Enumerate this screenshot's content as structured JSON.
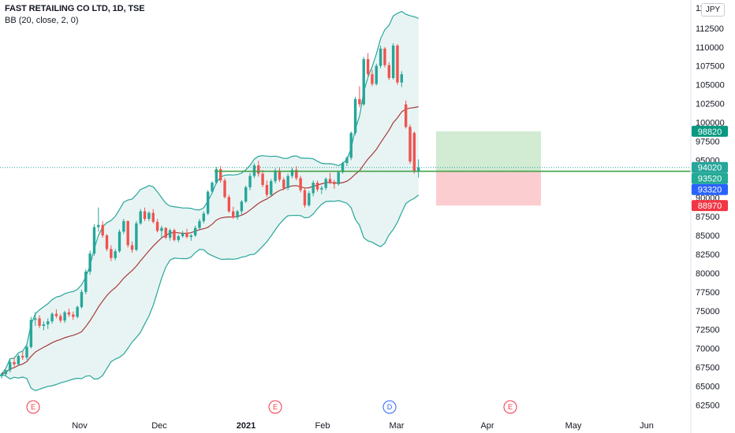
{
  "header": {
    "title": "FAST RETAILING CO LTD, 1D, TSE",
    "indicator": "BB (20, close, 2, 0)",
    "currency": "JPY"
  },
  "chart_data": {
    "type": "candlestick",
    "instrument": "FAST RETAILING CO LTD",
    "interval": "1D",
    "exchange": "TSE",
    "currency": "JPY",
    "ylim": [
      61500,
      115200
    ],
    "y_ticks": [
      62500,
      65000,
      67500,
      70000,
      72500,
      75000,
      77500,
      80000,
      82500,
      85000,
      87500,
      90000,
      92500,
      95000,
      97500,
      100000,
      102500,
      105000,
      107500,
      110000,
      112500
    ],
    "top_tick_partial": "11",
    "x_labels": [
      {
        "label": "Nov",
        "bold": false
      },
      {
        "label": "Dec",
        "bold": false
      },
      {
        "label": "2021",
        "bold": true
      },
      {
        "label": "Feb",
        "bold": false
      },
      {
        "label": "Mar",
        "bold": false
      },
      {
        "label": "Apr",
        "bold": false
      },
      {
        "label": "May",
        "bold": false
      },
      {
        "label": "Jun",
        "bold": false
      }
    ],
    "bars": [
      [
        66300,
        66800,
        66000,
        66600
      ],
      [
        66600,
        67200,
        66300,
        67100
      ],
      [
        67100,
        68500,
        66800,
        68200
      ],
      [
        68200,
        68800,
        67600,
        67900
      ],
      [
        67900,
        69200,
        67700,
        69000
      ],
      [
        69000,
        69600,
        68500,
        68800
      ],
      [
        68800,
        70500,
        68500,
        70200
      ],
      [
        70200,
        74200,
        70000,
        73800
      ],
      [
        73800,
        74800,
        73000,
        74000
      ],
      [
        74000,
        74400,
        72700,
        73000
      ],
      [
        73000,
        73600,
        72400,
        73200
      ],
      [
        73200,
        74000,
        72600,
        73600
      ],
      [
        73600,
        74800,
        73300,
        74600
      ],
      [
        74600,
        75200,
        74000,
        74300
      ],
      [
        74300,
        74600,
        73400,
        73700
      ],
      [
        73700,
        75000,
        73400,
        74800
      ],
      [
        74800,
        75300,
        74200,
        74500
      ],
      [
        74500,
        74900,
        73800,
        74200
      ],
      [
        74200,
        75700,
        74000,
        75500
      ],
      [
        75500,
        77800,
        75300,
        77500
      ],
      [
        77500,
        80500,
        77200,
        80200
      ],
      [
        80200,
        83000,
        79800,
        82600
      ],
      [
        82600,
        86500,
        82300,
        86100
      ],
      [
        86100,
        88700,
        85500,
        86400
      ],
      [
        86400,
        86900,
        84700,
        85000
      ],
      [
        85000,
        85200,
        82900,
        83200
      ],
      [
        83200,
        83700,
        81600,
        82000
      ],
      [
        82000,
        83200,
        81700,
        82900
      ],
      [
        82900,
        85800,
        82700,
        85500
      ],
      [
        85500,
        87200,
        85200,
        86900
      ],
      [
        86900,
        87000,
        83400,
        83700
      ],
      [
        83700,
        84200,
        82700,
        83100
      ],
      [
        83100,
        86900,
        82900,
        86600
      ],
      [
        86600,
        88500,
        86400,
        88200
      ],
      [
        88200,
        88700,
        86900,
        87200
      ],
      [
        87200,
        88200,
        86900,
        88000
      ],
      [
        88000,
        88500,
        86600,
        86800
      ],
      [
        86800,
        87200,
        85400,
        85600
      ],
      [
        85600,
        86300,
        84600,
        86000
      ],
      [
        86000,
        86100,
        84500,
        84700
      ],
      [
        84700,
        85900,
        84300,
        85700
      ],
      [
        85700,
        85900,
        84200,
        84400
      ],
      [
        84400,
        85100,
        84100,
        84900
      ],
      [
        84900,
        85600,
        84700,
        85300
      ],
      [
        85300,
        85900,
        84600,
        84800
      ],
      [
        84800,
        85200,
        84300,
        85000
      ],
      [
        85000,
        86300,
        84800,
        86000
      ],
      [
        86000,
        87200,
        85800,
        86900
      ],
      [
        86900,
        88200,
        86600,
        87900
      ],
      [
        87900,
        91000,
        87700,
        90800
      ],
      [
        90800,
        92200,
        90500,
        92000
      ],
      [
        92000,
        94100,
        91800,
        93800
      ],
      [
        93800,
        94200,
        92000,
        92300
      ],
      [
        92300,
        92600,
        89900,
        90100
      ],
      [
        90100,
        90400,
        88000,
        88200
      ],
      [
        88200,
        88800,
        87200,
        87400
      ],
      [
        87400,
        88400,
        87100,
        88200
      ],
      [
        88200,
        89700,
        87800,
        89500
      ],
      [
        89500,
        91600,
        89300,
        91400
      ],
      [
        91400,
        93300,
        91000,
        92900
      ],
      [
        92900,
        94600,
        92600,
        94300
      ],
      [
        94300,
        94900,
        92800,
        93200
      ],
      [
        93200,
        93700,
        91400,
        91700
      ],
      [
        91700,
        92300,
        90100,
        90400
      ],
      [
        90400,
        92500,
        90200,
        92200
      ],
      [
        92200,
        93900,
        91900,
        93600
      ],
      [
        93600,
        94000,
        92100,
        92400
      ],
      [
        92400,
        92700,
        91000,
        91300
      ],
      [
        91300,
        93200,
        91000,
        92900
      ],
      [
        92900,
        94000,
        92600,
        93700
      ],
      [
        93700,
        94200,
        92300,
        92600
      ],
      [
        92600,
        92900,
        90700,
        91000
      ],
      [
        91000,
        91300,
        88700,
        89000
      ],
      [
        89000,
        90900,
        88800,
        90600
      ],
      [
        90600,
        92300,
        90200,
        92000
      ],
      [
        92000,
        92300,
        90800,
        91100
      ],
      [
        91100,
        91600,
        90500,
        91300
      ],
      [
        91300,
        92700,
        91000,
        92500
      ],
      [
        92500,
        93300,
        91800,
        92100
      ],
      [
        92100,
        92400,
        91200,
        91800
      ],
      [
        91800,
        93600,
        91600,
        93400
      ],
      [
        93400,
        94800,
        93200,
        94600
      ],
      [
        94600,
        95500,
        94200,
        95300
      ],
      [
        95300,
        98800,
        95000,
        98600
      ],
      [
        98600,
        103400,
        98300,
        103100
      ],
      [
        103100,
        104800,
        102000,
        102400
      ],
      [
        102400,
        108700,
        102200,
        108400
      ],
      [
        108400,
        109200,
        106100,
        106400
      ],
      [
        106400,
        107000,
        104800,
        105100
      ],
      [
        105100,
        107800,
        104900,
        107500
      ],
      [
        107500,
        110200,
        107200,
        109800
      ],
      [
        109800,
        110000,
        107300,
        107600
      ],
      [
        107600,
        108000,
        105600,
        105900
      ],
      [
        105900,
        110500,
        105700,
        110200
      ],
      [
        110200,
        110400,
        105000,
        105300
      ],
      [
        105300,
        106800,
        104700,
        106400
      ],
      [
        102400,
        102900,
        99200,
        99400
      ],
      [
        99400,
        99700,
        94500,
        94800
      ],
      [
        98600,
        98800,
        93200,
        93500
      ],
      [
        93500,
        95100,
        92700,
        94020
      ]
    ],
    "current_price": 94020,
    "price_line": 93520,
    "risk_reward": {
      "entry": 93520,
      "target": 98820,
      "stop": 88970
    },
    "price_tags": [
      {
        "value": 98820,
        "label": "98820",
        "color": "#089981"
      },
      {
        "value": 94020,
        "label": "94020",
        "color": "#26a69a"
      },
      {
        "value": 93520,
        "label": "93520",
        "color": "#22ab94"
      },
      {
        "value": 93320,
        "label": "93320",
        "color": "#2962ff"
      },
      {
        "value": 88970,
        "label": "88970",
        "color": "#f23645"
      }
    ],
    "events": [
      {
        "letter": "E",
        "color": "#f23645"
      },
      {
        "letter": "E",
        "color": "#f23645"
      },
      {
        "letter": "D",
        "color": "#2962ff"
      },
      {
        "letter": "E",
        "color": "#f23645"
      }
    ],
    "colors": {
      "up": "#26a69a",
      "down": "#ef5350",
      "bb_band": "#26a69a",
      "bb_basis": "#a83a3a",
      "bb_fill": "#e8f4f3",
      "price_line": "#43a047"
    }
  }
}
